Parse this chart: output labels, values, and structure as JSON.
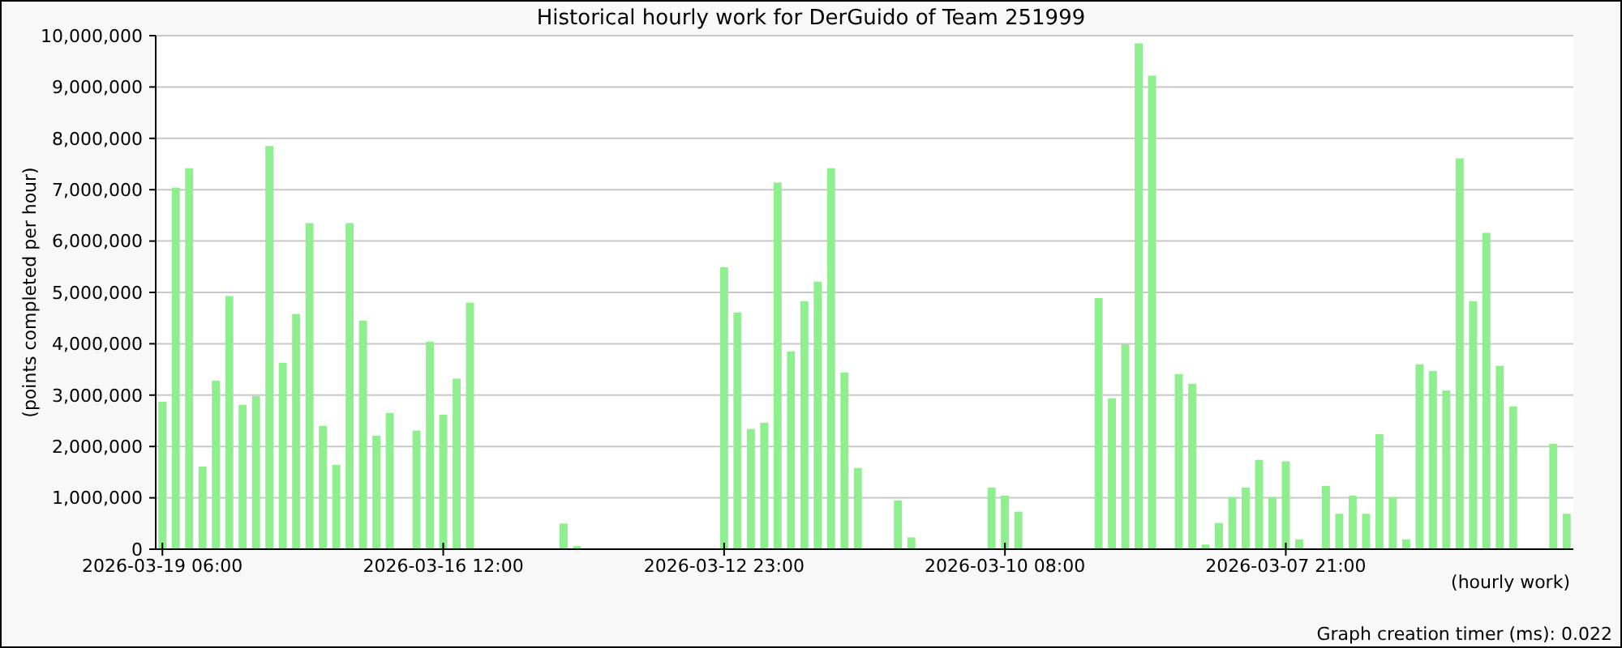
{
  "chart_data": {
    "type": "bar",
    "title": "Historical hourly work for DerGuido of Team 251999",
    "ylabel": "(points completed per hour)",
    "xlabel": "(hourly work)",
    "annotations": [
      "Graph creation timer (ms): 0.022"
    ],
    "categories": [
      "2026-03-19 06:00",
      null,
      null,
      null,
      null,
      null,
      null,
      null,
      null,
      null,
      null,
      null,
      null,
      null,
      null,
      null,
      null,
      null,
      null,
      null,
      null,
      "2026-03-16 12:00",
      null,
      null,
      null,
      null,
      null,
      null,
      null,
      null,
      null,
      null,
      null,
      null,
      null,
      null,
      null,
      null,
      null,
      null,
      null,
      null,
      "2026-03-12 23:00",
      null,
      null,
      null,
      null,
      null,
      null,
      null,
      null,
      null,
      null,
      null,
      null,
      null,
      null,
      null,
      null,
      null,
      null,
      null,
      null,
      "2026-03-10 08:00",
      null,
      null,
      null,
      null,
      null,
      null,
      null,
      null,
      null,
      null,
      null,
      null,
      null,
      null,
      null,
      null,
      null,
      null,
      null,
      null,
      "2026-03-07 21:00",
      null,
      null,
      null,
      null,
      null,
      null,
      null,
      null,
      null,
      null,
      null,
      null,
      null,
      null,
      null,
      null,
      null,
      null,
      null,
      null,
      null
    ],
    "values": [
      2870000,
      7040000,
      7420000,
      1610000,
      3280000,
      4930000,
      2810000,
      2980000,
      7850000,
      3630000,
      4580000,
      6350000,
      2400000,
      1640000,
      6350000,
      4450000,
      2210000,
      2650000,
      null,
      2310000,
      4040000,
      2620000,
      3320000,
      4800000,
      null,
      null,
      null,
      null,
      null,
      null,
      500000,
      60000,
      null,
      null,
      null,
      null,
      null,
      null,
      null,
      null,
      null,
      null,
      5490000,
      4610000,
      2340000,
      2460000,
      7140000,
      3850000,
      4830000,
      5210000,
      7420000,
      3440000,
      1580000,
      null,
      null,
      950000,
      230000,
      null,
      null,
      null,
      null,
      null,
      1200000,
      1040000,
      730000,
      null,
      null,
      null,
      null,
      null,
      4890000,
      2940000,
      3990000,
      9850000,
      9220000,
      null,
      3410000,
      3220000,
      90000,
      510000,
      1010000,
      1200000,
      1740000,
      1010000,
      1710000,
      190000,
      null,
      1230000,
      690000,
      1040000,
      690000,
      2240000,
      1010000,
      190000,
      3600000,
      3470000,
      3090000,
      7610000,
      4830000,
      6160000,
      3570000,
      2780000,
      null,
      null,
      2050000,
      690000
    ],
    "color": "#90ee90",
    "ylim": [
      0,
      10000000
    ],
    "yticks": [
      0,
      {
        "value": 1000000,
        "label": "1,000,000"
      },
      {
        "value": 2000000,
        "label": "2,000,000"
      },
      {
        "value": 3000000,
        "label": "3,000,000"
      },
      {
        "value": 4000000,
        "label": "4,000,000"
      },
      {
        "value": 5000000,
        "label": "5,000,000"
      },
      {
        "value": 6000000,
        "label": "6,000,000"
      },
      {
        "value": 7000000,
        "label": "7,000,000"
      },
      {
        "value": 8000000,
        "label": "8,000,000"
      },
      {
        "value": 9000000,
        "label": "9,000,000"
      },
      {
        "value": 10000000,
        "label": "10,000,000"
      }
    ],
    "grid": "y"
  }
}
